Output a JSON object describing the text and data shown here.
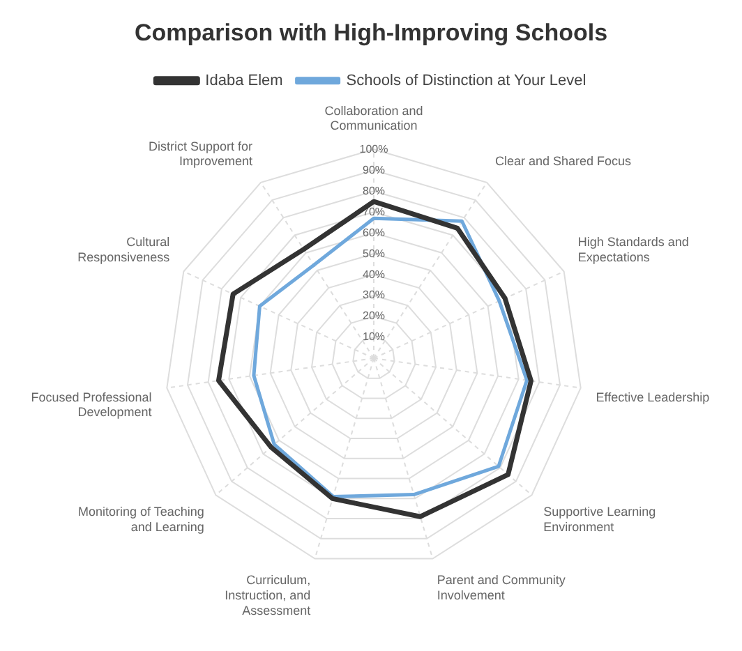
{
  "chart_data": {
    "type": "radar",
    "title": "Comparison with High-Improving Schools",
    "categories": [
      "Collaboration and Communication",
      "Clear and Shared Focus",
      "High Standards and Expectations",
      "Effective Leadership",
      "Supportive Learning Environment",
      "Parent and Community Involvement",
      "Curriculum, Instruction, and Assessment",
      "Monitoring of Teaching and Learning",
      "Focused Professional Development",
      "Cultural Responsiveness",
      "District Support for Improvement"
    ],
    "series": [
      {
        "name": "Idaba Elem",
        "color": "#333333",
        "values": [
          75,
          74,
          69,
          76,
          85,
          79,
          70,
          65,
          75,
          74,
          62
        ]
      },
      {
        "name": "Schools of Distinction at Your Level",
        "color": "#6fa8dc",
        "values": [
          67,
          78,
          66,
          74,
          79,
          68,
          69,
          63,
          58,
          60,
          53
        ]
      }
    ],
    "ylim": [
      0,
      100
    ],
    "yticks": [
      {
        "value": 10,
        "label": "10%"
      },
      {
        "value": 20,
        "label": "20%"
      },
      {
        "value": 30,
        "label": "30%"
      },
      {
        "value": 40,
        "label": "40%"
      },
      {
        "value": 50,
        "label": "50%"
      },
      {
        "value": 60,
        "label": "60%"
      },
      {
        "value": 70,
        "label": "70%"
      },
      {
        "value": 80,
        "label": "80%"
      },
      {
        "value": 90,
        "label": "90%"
      },
      {
        "value": 100,
        "label": "100%"
      }
    ],
    "grid": true,
    "legend": "top",
    "marker": "none",
    "line_style": "solid"
  }
}
